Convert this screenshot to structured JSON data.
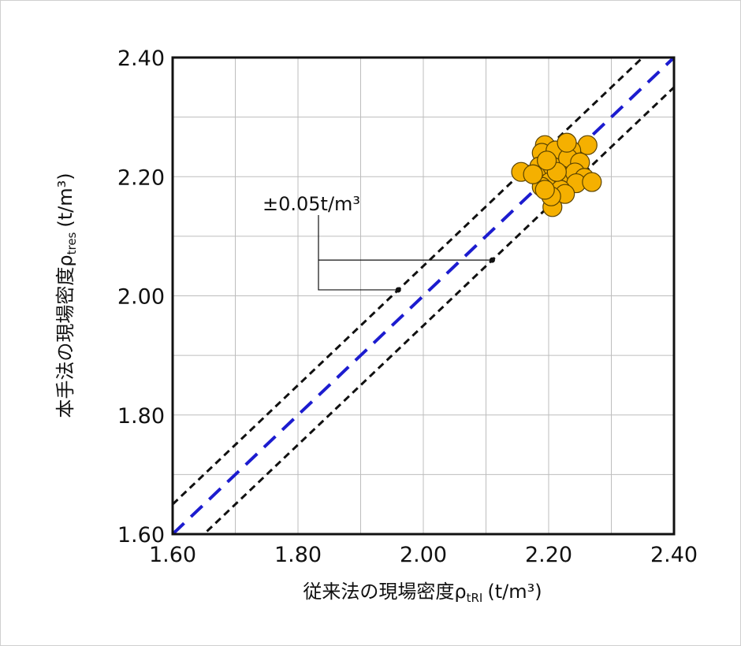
{
  "chart_data": {
    "type": "scatter",
    "xlabel": {
      "main": "従来法の現場密度ρ",
      "sub": "tRI",
      "unit": "(t/m³)"
    },
    "ylabel": {
      "main": "本手法の現場密度ρ",
      "sub": "tres",
      "unit": "(t/m³)"
    },
    "xlim": [
      1.6,
      2.4
    ],
    "ylim": [
      1.6,
      2.4
    ],
    "xticks": [
      {
        "value": 1.6,
        "label": "1.60"
      },
      {
        "value": 1.8,
        "label": "1.80"
      },
      {
        "value": 2.0,
        "label": "2.00"
      },
      {
        "value": 2.2,
        "label": "2.20"
      },
      {
        "value": 2.4,
        "label": "2.40"
      }
    ],
    "yticks": [
      {
        "value": 1.6,
        "label": "1.60"
      },
      {
        "value": 1.8,
        "label": "1.80"
      },
      {
        "value": 2.0,
        "label": "2.00"
      },
      {
        "value": 2.2,
        "label": "2.20"
      },
      {
        "value": 2.4,
        "label": "2.40"
      }
    ],
    "minor_grid": [
      1.7,
      1.9,
      2.1,
      2.3
    ],
    "grid": true,
    "reference_lines": [
      {
        "offset": 0.05,
        "color": "#111111"
      },
      {
        "offset": -0.05,
        "color": "#111111"
      },
      {
        "offset": 0,
        "color": "#1c1ccf"
      }
    ],
    "annotation": {
      "text": "±0.05t/m³",
      "points": [
        [
          1.96,
          2.01
        ],
        [
          2.11,
          2.06
        ]
      ]
    },
    "series": [
      {
        "color": "#f5b000",
        "x": [
          2.262,
          2.156,
          2.194,
          2.189,
          2.211,
          2.236,
          2.185,
          2.206,
          2.231,
          2.25,
          2.202,
          2.189,
          2.221,
          2.242,
          2.257,
          2.244,
          2.219,
          2.206,
          2.226,
          2.204,
          2.213,
          2.197,
          2.269,
          2.229,
          2.175,
          2.194
        ],
        "values": [
          2.253,
          2.208,
          2.253,
          2.24,
          2.244,
          2.244,
          2.217,
          2.217,
          2.231,
          2.224,
          2.191,
          2.183,
          2.202,
          2.207,
          2.198,
          2.189,
          2.178,
          2.149,
          2.171,
          2.167,
          2.208,
          2.227,
          2.191,
          2.257,
          2.204,
          2.178
        ]
      }
    ]
  }
}
